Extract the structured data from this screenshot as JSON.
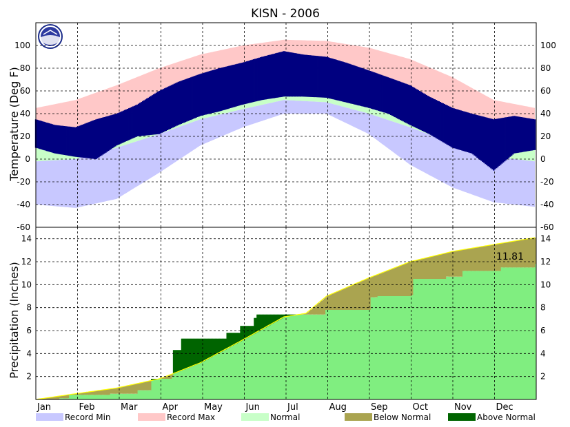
{
  "chart_data": {
    "type": "area",
    "title": "KISN - 2006",
    "x_tick_labels": [
      "Jan",
      "Feb",
      "Mar",
      "Apr",
      "May",
      "Jun",
      "Jul",
      "Aug",
      "Sep",
      "Oct",
      "Nov",
      "Dec"
    ],
    "colors": {
      "record_min": "#c8c8ff",
      "record_max": "#ffc8c8",
      "normal": "#c8ffc8",
      "temp_observed": "#000080",
      "precip_observed": "#80ee80",
      "below_normal": "#aaa450",
      "above_normal": "#006400",
      "normal_precip_line": "#ffff00"
    },
    "temperature": {
      "ylabel": "Temperature (Deg F)",
      "ylim": [
        -60,
        120
      ],
      "yticks": [
        -60,
        -40,
        -20,
        0,
        20,
        40,
        60,
        80,
        100
      ],
      "record_min": {
        "doy": [
          1,
          30,
          60,
          91,
          121,
          152,
          182,
          213,
          244,
          274,
          305,
          335,
          365
        ],
        "values": [
          -40,
          -43,
          -35,
          -12,
          12,
          28,
          40,
          40,
          22,
          -5,
          -25,
          -38,
          -42
        ]
      },
      "record_max": {
        "doy": [
          1,
          30,
          60,
          91,
          121,
          152,
          182,
          213,
          244,
          274,
          305,
          335,
          365
        ],
        "values": [
          45,
          52,
          65,
          80,
          92,
          100,
          105,
          104,
          98,
          88,
          72,
          52,
          45
        ]
      },
      "normal_low": {
        "doy": [
          1,
          30,
          60,
          91,
          121,
          152,
          182,
          213,
          244,
          274,
          305,
          335,
          365
        ],
        "values": [
          -2,
          0,
          10,
          22,
          35,
          44,
          52,
          50,
          40,
          28,
          14,
          2,
          -2
        ]
      },
      "normal_high": {
        "doy": [
          1,
          30,
          60,
          91,
          121,
          152,
          182,
          213,
          244,
          274,
          305,
          335,
          365
        ],
        "values": [
          20,
          26,
          36,
          50,
          64,
          74,
          82,
          80,
          68,
          52,
          34,
          22,
          20
        ]
      },
      "observed_low": {
        "doy": [
          1,
          15,
          30,
          45,
          60,
          75,
          91,
          105,
          121,
          135,
          152,
          166,
          182,
          196,
          213,
          227,
          244,
          258,
          274,
          288,
          305,
          319,
          335,
          350,
          365
        ],
        "values": [
          10,
          5,
          2,
          0,
          12,
          20,
          22,
          30,
          38,
          42,
          48,
          52,
          55,
          55,
          54,
          50,
          45,
          40,
          30,
          22,
          10,
          5,
          -10,
          5,
          8
        ]
      },
      "observed_high": {
        "doy": [
          1,
          15,
          30,
          45,
          60,
          75,
          91,
          105,
          121,
          135,
          152,
          166,
          182,
          196,
          213,
          227,
          244,
          258,
          274,
          288,
          305,
          319,
          335,
          350,
          365
        ],
        "values": [
          35,
          30,
          28,
          35,
          40,
          48,
          60,
          68,
          75,
          80,
          85,
          90,
          95,
          92,
          90,
          85,
          78,
          72,
          65,
          55,
          45,
          40,
          35,
          38,
          35
        ]
      }
    },
    "precipitation": {
      "ylabel": "Precipitation (Inches)",
      "ylim": [
        0,
        15
      ],
      "yticks": [
        2,
        4,
        6,
        8,
        10,
        12,
        14
      ],
      "observed_total_label": "11.81",
      "normal_cumulative": {
        "doy": [
          1,
          30,
          60,
          91,
          100,
          121,
          152,
          182,
          198,
          213,
          244,
          274,
          305,
          335,
          365
        ],
        "values": [
          0,
          0.5,
          1.0,
          1.8,
          2.2,
          3.2,
          5.2,
          7.2,
          7.5,
          9.0,
          10.6,
          12.0,
          12.9,
          13.5,
          14.1
        ]
      },
      "observed_cumulative": {
        "doy": [
          1,
          18,
          25,
          55,
          75,
          85,
          100,
          101,
          107,
          140,
          150,
          160,
          162,
          200,
          212,
          245,
          250,
          275,
          276,
          300,
          312,
          340,
          365
        ],
        "values": [
          0,
          0.1,
          0.4,
          0.5,
          0.8,
          1.8,
          2.0,
          4.3,
          5.3,
          5.8,
          6.4,
          7.1,
          7.4,
          7.4,
          7.8,
          8.9,
          9.0,
          9.1,
          10.5,
          10.7,
          11.2,
          11.5,
          11.81
        ]
      }
    },
    "legend": [
      "Record Min",
      "Record Max",
      "Normal",
      "Below Normal",
      "Above Normal"
    ],
    "legend_placement": "bottom",
    "grid": true
  }
}
